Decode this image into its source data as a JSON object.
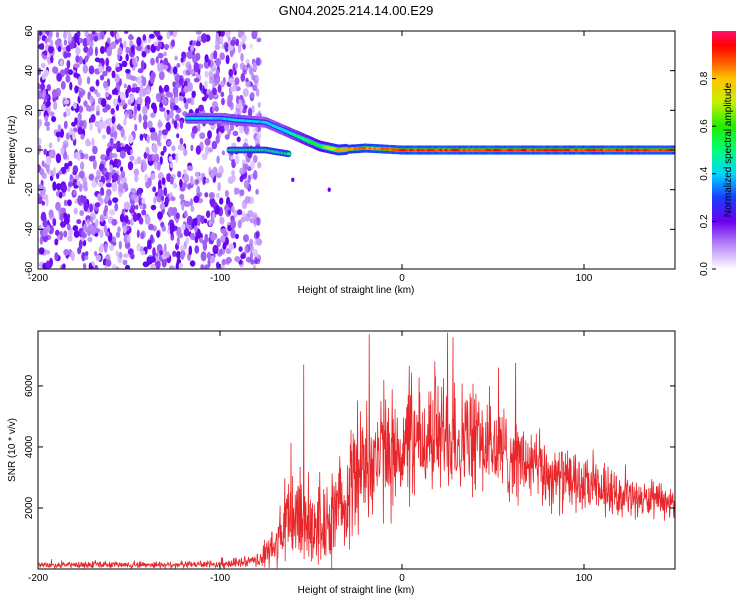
{
  "title": "GN04.2025.214.14.00.E29",
  "chart_data": [
    {
      "type": "heatmap",
      "xlabel": "Height of straight line (km)",
      "ylabel": "Frequency (Hz)",
      "xlim": [
        -200,
        150
      ],
      "ylim": [
        -60,
        60
      ],
      "xticks": [
        -200,
        -100,
        0,
        100
      ],
      "yticks": [
        -60,
        -40,
        -20,
        0,
        20,
        40,
        60
      ],
      "colorbar": {
        "label": "Normalized spectral amplitude",
        "range": [
          0,
          1
        ],
        "ticks": [
          "0.0",
          "0.2",
          "0.4",
          "0.6",
          "0.8"
        ],
        "colormap": "rainbow-white-to-magenta-red"
      },
      "noise_region": {
        "x_range": [
          -200,
          -78
        ],
        "f_range": [
          -60,
          60
        ],
        "amplitude_range": [
          0.0,
          0.15
        ]
      },
      "ridge": [
        {
          "x": -113,
          "f": 16,
          "amp": 0.45
        },
        {
          "x": -100,
          "f": 16,
          "amp": 0.4
        },
        {
          "x": -90,
          "f": 15,
          "amp": 0.45
        },
        {
          "x": -75,
          "f": 14,
          "amp": 0.4
        },
        {
          "x": -65,
          "f": 10,
          "amp": 0.45
        },
        {
          "x": -55,
          "f": 6,
          "amp": 0.55
        },
        {
          "x": -45,
          "f": 2,
          "amp": 0.6
        },
        {
          "x": -35,
          "f": 0,
          "amp": 0.85
        },
        {
          "x": -20,
          "f": 1,
          "amp": 0.9
        },
        {
          "x": 0,
          "f": 0,
          "amp": 0.95
        },
        {
          "x": 40,
          "f": 0,
          "amp": 0.95
        },
        {
          "x": 80,
          "f": 0,
          "amp": 0.95
        },
        {
          "x": 150,
          "f": 0,
          "amp": 0.95
        }
      ],
      "secondary_branch": [
        {
          "x": -95,
          "f": 0,
          "amp": 0.35
        },
        {
          "x": -75,
          "f": 0,
          "amp": 0.35
        },
        {
          "x": -62,
          "f": -2,
          "amp": 0.3
        }
      ],
      "outlier_points": [
        {
          "x": -60,
          "f": -15
        },
        {
          "x": -40,
          "f": -20
        }
      ]
    },
    {
      "type": "line",
      "xlabel": "Height of straight line (km)",
      "ylabel": "SNR (10 * v/v)",
      "xlim": [
        -200,
        150
      ],
      "ylim": [
        0,
        7800
      ],
      "xticks": [
        -200,
        -100,
        0,
        100
      ],
      "yticks": [
        2000,
        4000,
        6000
      ],
      "series_color": "#e8262a",
      "envelope": [
        {
          "x": -200,
          "base": 130,
          "amp": 120
        },
        {
          "x": -100,
          "base": 150,
          "amp": 150
        },
        {
          "x": -80,
          "base": 250,
          "amp": 250
        },
        {
          "x": -70,
          "base": 700,
          "amp": 900
        },
        {
          "x": -60,
          "base": 1800,
          "amp": 2200
        },
        {
          "x": -50,
          "base": 1600,
          "amp": 2000
        },
        {
          "x": -40,
          "base": 1300,
          "amp": 1600
        },
        {
          "x": -30,
          "base": 2600,
          "amp": 2400
        },
        {
          "x": -20,
          "base": 3500,
          "amp": 2500
        },
        {
          "x": 0,
          "base": 3900,
          "amp": 2400
        },
        {
          "x": 20,
          "base": 4400,
          "amp": 2400
        },
        {
          "x": 40,
          "base": 4200,
          "amp": 2200
        },
        {
          "x": 60,
          "base": 3700,
          "amp": 1800
        },
        {
          "x": 80,
          "base": 3100,
          "amp": 1400
        },
        {
          "x": 100,
          "base": 2700,
          "amp": 1100
        },
        {
          "x": 120,
          "base": 2400,
          "amp": 800
        },
        {
          "x": 150,
          "base": 2100,
          "amp": 600
        }
      ],
      "peaks": [
        {
          "x": -54,
          "y": 6700
        },
        {
          "x": -18,
          "y": 7700
        },
        {
          "x": 25,
          "y": 7750
        },
        {
          "x": 28,
          "y": 7600
        },
        {
          "x": -10,
          "y": 6200
        },
        {
          "x": 18,
          "y": 6800
        },
        {
          "x": 53,
          "y": 6600
        }
      ]
    }
  ]
}
